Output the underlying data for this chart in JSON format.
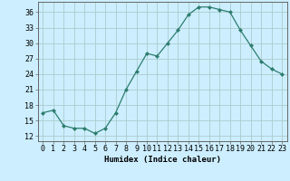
{
  "x": [
    0,
    1,
    2,
    3,
    4,
    5,
    6,
    7,
    8,
    9,
    10,
    11,
    12,
    13,
    14,
    15,
    16,
    17,
    18,
    19,
    20,
    21,
    22,
    23
  ],
  "y": [
    16.5,
    17.0,
    14.0,
    13.5,
    13.5,
    12.5,
    13.5,
    16.5,
    21.0,
    24.5,
    28.0,
    27.5,
    30.0,
    32.5,
    35.5,
    37.0,
    37.0,
    36.5,
    36.0,
    32.5,
    29.5,
    26.5,
    25.0,
    24.0
  ],
  "line_color": "#2e7d6e",
  "marker": "D",
  "marker_size": 2.0,
  "bg_color": "#cceeff",
  "grid_color": "#aacccc",
  "xlabel": "Humidex (Indice chaleur)",
  "xlim": [
    -0.5,
    23.5
  ],
  "ylim": [
    11,
    38
  ],
  "yticks": [
    12,
    15,
    18,
    21,
    24,
    27,
    30,
    33,
    36
  ],
  "xtick_labels": [
    "0",
    "1",
    "2",
    "3",
    "4",
    "5",
    "6",
    "7",
    "8",
    "9",
    "10",
    "11",
    "12",
    "13",
    "14",
    "15",
    "16",
    "17",
    "18",
    "19",
    "20",
    "21",
    "22",
    "23"
  ],
  "xlabel_fontsize": 6.5,
  "tick_fontsize": 6.0
}
